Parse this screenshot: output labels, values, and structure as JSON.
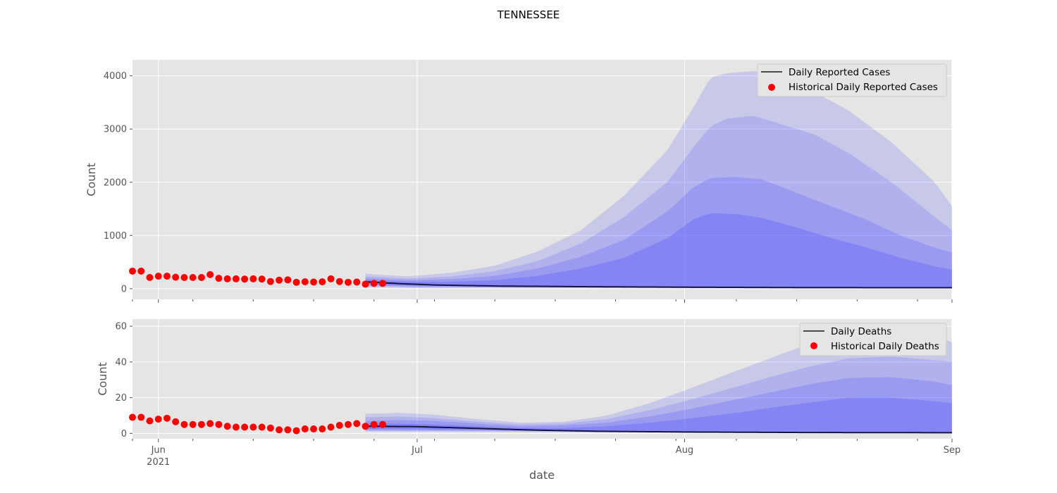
{
  "chart_data": {
    "title": "TENNESSEE",
    "xlabel": "date",
    "x_ticks": [
      {
        "date": "2021-06-01",
        "label": "Jun",
        "sublabel": "2021"
      },
      {
        "date": "2021-07-01",
        "label": "Jul"
      },
      {
        "date": "2021-08-01",
        "label": "Aug"
      },
      {
        "date": "2021-09-01",
        "label": "Sep"
      }
    ],
    "x_range": [
      "2021-05-29",
      "2021-09-01"
    ],
    "panels": [
      {
        "type": "line",
        "ylabel": "Count",
        "ylim": [
          -200,
          4300
        ],
        "y_ticks": [
          0,
          1000,
          2000,
          3000,
          4000
        ],
        "legend_position": "top-right",
        "legend": {
          "line_label": "Daily Reported Cases",
          "points_label": "Historical Daily Reported Cases"
        },
        "historical": {
          "start": "2021-05-29",
          "values": [
            330,
            330,
            210,
            235,
            235,
            215,
            210,
            210,
            210,
            265,
            195,
            185,
            185,
            180,
            185,
            180,
            135,
            160,
            165,
            120,
            130,
            125,
            130,
            185,
            135,
            120,
            125,
            85,
            100,
            100
          ]
        },
        "forecast": {
          "start": "2021-06-25",
          "end": "2021-09-01",
          "median": [
            [
              "2021-06-25",
              130
            ],
            [
              "2021-06-29",
              95
            ],
            [
              "2021-07-03",
              70
            ],
            [
              "2021-07-10",
              50
            ],
            [
              "2021-07-20",
              38
            ],
            [
              "2021-08-01",
              28
            ],
            [
              "2021-08-15",
              20
            ],
            [
              "2021-09-01",
              18
            ]
          ],
          "bands": [
            {
              "name": "outer",
              "upper": [
                [
                  "2021-06-25",
                  280
                ],
                [
                  "2021-06-30",
                  230
                ],
                [
                  "2021-07-05",
                  300
                ],
                [
                  "2021-07-10",
                  430
                ],
                [
                  "2021-07-15",
                  700
                ],
                [
                  "2021-07-20",
                  1100
                ],
                [
                  "2021-07-25",
                  1750
                ],
                [
                  "2021-07-30",
                  2600
                ],
                [
                  "2021-08-02",
                  3400
                ],
                [
                  "2021-08-04",
                  3970
                ],
                [
                  "2021-08-06",
                  4050
                ],
                [
                  "2021-08-09",
                  4090
                ],
                [
                  "2021-08-12",
                  4040
                ],
                [
                  "2021-08-16",
                  3700
                ],
                [
                  "2021-08-20",
                  3350
                ],
                [
                  "2021-08-25",
                  2750
                ],
                [
                  "2021-08-30",
                  2000
                ],
                [
                  "2021-09-01",
                  1550
                ]
              ],
              "lower": [
                [
                  "2021-06-25",
                  30
                ],
                [
                  "2021-07-01",
                  10
                ],
                [
                  "2021-09-01",
                  5
                ]
              ]
            },
            {
              "name": "middle",
              "upper": [
                [
                  "2021-06-25",
                  230
                ],
                [
                  "2021-06-30",
                  190
                ],
                [
                  "2021-07-05",
                  230
                ],
                [
                  "2021-07-10",
                  330
                ],
                [
                  "2021-07-15",
                  520
                ],
                [
                  "2021-07-20",
                  850
                ],
                [
                  "2021-07-25",
                  1350
                ],
                [
                  "2021-07-30",
                  2000
                ],
                [
                  "2021-08-02",
                  2650
                ],
                [
                  "2021-08-04",
                  3050
                ],
                [
                  "2021-08-06",
                  3200
                ],
                [
                  "2021-08-09",
                  3250
                ],
                [
                  "2021-08-12",
                  3100
                ],
                [
                  "2021-08-16",
                  2900
                ],
                [
                  "2021-08-20",
                  2550
                ],
                [
                  "2021-08-25",
                  2000
                ],
                [
                  "2021-08-30",
                  1350
                ],
                [
                  "2021-09-01",
                  1100
                ]
              ],
              "lower": [
                [
                  "2021-06-25",
                  50
                ],
                [
                  "2021-07-01",
                  25
                ],
                [
                  "2021-09-01",
                  10
                ]
              ]
            },
            {
              "name": "inner",
              "upper": [
                [
                  "2021-06-25",
                  190
                ],
                [
                  "2021-06-30",
                  160
                ],
                [
                  "2021-07-05",
                  180
                ],
                [
                  "2021-07-10",
                  240
                ],
                [
                  "2021-07-15",
                  380
                ],
                [
                  "2021-07-20",
                  600
                ],
                [
                  "2021-07-25",
                  920
                ],
                [
                  "2021-07-30",
                  1450
                ],
                [
                  "2021-08-02",
                  1900
                ],
                [
                  "2021-08-04",
                  2080
                ],
                [
                  "2021-08-07",
                  2100
                ],
                [
                  "2021-08-10",
                  2050
                ],
                [
                  "2021-08-14",
                  1800
                ],
                [
                  "2021-08-18",
                  1550
                ],
                [
                  "2021-08-22",
                  1300
                ],
                [
                  "2021-08-26",
                  1000
                ],
                [
                  "2021-08-30",
                  770
                ],
                [
                  "2021-09-01",
                  680
                ]
              ],
              "lower": [
                [
                  "2021-06-25",
                  70
                ],
                [
                  "2021-07-01",
                  40
                ],
                [
                  "2021-09-01",
                  15
                ]
              ]
            },
            {
              "name": "core",
              "upper": [
                [
                  "2021-06-25",
                  160
                ],
                [
                  "2021-06-30",
                  130
                ],
                [
                  "2021-07-05",
                  130
                ],
                [
                  "2021-07-10",
                  160
                ],
                [
                  "2021-07-15",
                  240
                ],
                [
                  "2021-07-20",
                  380
                ],
                [
                  "2021-07-25",
                  580
                ],
                [
                  "2021-07-30",
                  950
                ],
                [
                  "2021-08-02",
                  1300
                ],
                [
                  "2021-08-04",
                  1420
                ],
                [
                  "2021-08-07",
                  1400
                ],
                [
                  "2021-08-10",
                  1330
                ],
                [
                  "2021-08-14",
                  1150
                ],
                [
                  "2021-08-18",
                  950
                ],
                [
                  "2021-08-22",
                  780
                ],
                [
                  "2021-08-26",
                  580
                ],
                [
                  "2021-08-30",
                  420
                ],
                [
                  "2021-09-01",
                  360
                ]
              ],
              "lower": [
                [
                  "2021-06-25",
                  90
                ],
                [
                  "2021-07-01",
                  55
                ],
                [
                  "2021-09-01",
                  15
                ]
              ]
            }
          ]
        }
      },
      {
        "type": "line",
        "ylabel": "Count",
        "ylim": [
          -3,
          64
        ],
        "y_ticks": [
          0,
          20,
          40,
          60
        ],
        "legend_position": "top-right",
        "legend": {
          "line_label": "Daily Deaths",
          "points_label": "Historical Daily Deaths"
        },
        "historical": {
          "start": "2021-05-29",
          "values": [
            9,
            9,
            7,
            8,
            8.5,
            6.5,
            5,
            5,
            5,
            5.5,
            5,
            4,
            3.5,
            3.5,
            3.5,
            3.5,
            3,
            2,
            2,
            1.5,
            2.5,
            2.5,
            2.5,
            3.5,
            4.5,
            5,
            5.5,
            4,
            5,
            5
          ]
        },
        "forecast": {
          "start": "2021-06-25",
          "end": "2021-09-01",
          "median": [
            [
              "2021-06-25",
              4
            ],
            [
              "2021-07-01",
              3.8
            ],
            [
              "2021-07-08",
              2.8
            ],
            [
              "2021-07-15",
              1.8
            ],
            [
              "2021-07-22",
              1.2
            ],
            [
              "2021-08-01",
              0.8
            ],
            [
              "2021-08-15",
              0.5
            ],
            [
              "2021-09-01",
              0.4
            ]
          ],
          "bands": [
            {
              "name": "outer",
              "upper": [
                [
                  "2021-06-25",
                  11
                ],
                [
                  "2021-06-29",
                  11.5
                ],
                [
                  "2021-07-03",
                  10.5
                ],
                [
                  "2021-07-08",
                  8
                ],
                [
                  "2021-07-13",
                  6
                ],
                [
                  "2021-07-18",
                  6.5
                ],
                [
                  "2021-07-23",
                  10
                ],
                [
                  "2021-07-28",
                  17
                ],
                [
                  "2021-08-01",
                  24
                ],
                [
                  "2021-08-07",
                  35
                ],
                [
                  "2021-08-12",
                  44
                ],
                [
                  "2021-08-16",
                  51
                ],
                [
                  "2021-08-20",
                  56
                ],
                [
                  "2021-08-25",
                  58
                ],
                [
                  "2021-08-30",
                  55
                ],
                [
                  "2021-09-01",
                  51
                ]
              ],
              "lower": [
                [
                  "2021-06-25",
                  1
                ],
                [
                  "2021-09-01",
                  0
                ]
              ]
            },
            {
              "name": "middle",
              "upper": [
                [
                  "2021-06-25",
                  9
                ],
                [
                  "2021-06-29",
                  9.5
                ],
                [
                  "2021-07-03",
                  8.5
                ],
                [
                  "2021-07-08",
                  6.5
                ],
                [
                  "2021-07-13",
                  5
                ],
                [
                  "2021-07-18",
                  5.5
                ],
                [
                  "2021-07-23",
                  8
                ],
                [
                  "2021-07-28",
                  13
                ],
                [
                  "2021-08-01",
                  18
                ],
                [
                  "2021-08-07",
                  26
                ],
                [
                  "2021-08-12",
                  33
                ],
                [
                  "2021-08-16",
                  38
                ],
                [
                  "2021-08-20",
                  42
                ],
                [
                  "2021-08-25",
                  43
                ],
                [
                  "2021-08-30",
                  41
                ],
                [
                  "2021-09-01",
                  40
                ]
              ],
              "lower": [
                [
                  "2021-06-25",
                  1.5
                ],
                [
                  "2021-09-01",
                  0.2
                ]
              ]
            },
            {
              "name": "inner",
              "upper": [
                [
                  "2021-06-25",
                  7
                ],
                [
                  "2021-06-29",
                  7.5
                ],
                [
                  "2021-07-03",
                  7
                ],
                [
                  "2021-07-08",
                  5.5
                ],
                [
                  "2021-07-13",
                  4
                ],
                [
                  "2021-07-18",
                  4.5
                ],
                [
                  "2021-07-23",
                  6
                ],
                [
                  "2021-07-28",
                  9.5
                ],
                [
                  "2021-08-01",
                  13
                ],
                [
                  "2021-08-07",
                  19
                ],
                [
                  "2021-08-12",
                  24
                ],
                [
                  "2021-08-16",
                  28
                ],
                [
                  "2021-08-20",
                  31
                ],
                [
                  "2021-08-25",
                  31.5
                ],
                [
                  "2021-08-30",
                  29
                ],
                [
                  "2021-09-01",
                  27
                ]
              ],
              "lower": [
                [
                  "2021-06-25",
                  2
                ],
                [
                  "2021-09-01",
                  0.3
                ]
              ]
            },
            {
              "name": "core",
              "upper": [
                [
                  "2021-06-25",
                  5.5
                ],
                [
                  "2021-06-29",
                  5.5
                ],
                [
                  "2021-07-03",
                  5
                ],
                [
                  "2021-07-08",
                  4
                ],
                [
                  "2021-07-13",
                  3
                ],
                [
                  "2021-07-18",
                  3
                ],
                [
                  "2021-07-23",
                  4
                ],
                [
                  "2021-07-28",
                  6
                ],
                [
                  "2021-08-01",
                  8
                ],
                [
                  "2021-08-07",
                  11.5
                ],
                [
                  "2021-08-12",
                  15
                ],
                [
                  "2021-08-16",
                  17.5
                ],
                [
                  "2021-08-20",
                  20
                ],
                [
                  "2021-08-25",
                  20
                ],
                [
                  "2021-08-30",
                  18
                ],
                [
                  "2021-09-01",
                  17
                ]
              ],
              "lower": [
                [
                  "2021-06-25",
                  2.5
                ],
                [
                  "2021-09-01",
                  0.3
                ]
              ]
            }
          ]
        }
      }
    ]
  },
  "colors": {
    "axes_background": "#e5e5e5",
    "grid": "#ffffff",
    "band_fill": "#4a4aff",
    "median_line": "#151540",
    "historical_points": "#ff0000",
    "legend_frame": "#cccccc",
    "legend_background": "#e5e5e5"
  }
}
